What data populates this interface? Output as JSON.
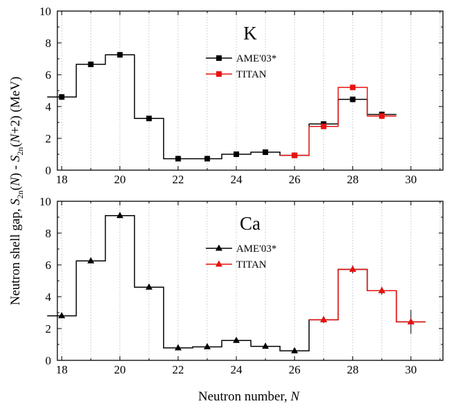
{
  "chart_data": [
    {
      "type": "line",
      "step": true,
      "label": "K",
      "xlim": [
        17.85,
        31.1
      ],
      "ylim": [
        0,
        10
      ],
      "xticks": [
        18,
        20,
        22,
        24,
        26,
        28,
        30
      ],
      "yticks": [
        0,
        2,
        4,
        6,
        8,
        10
      ],
      "grid": "vertical dotted at each integer N",
      "legend_position": "top-center",
      "series": [
        {
          "name": "AME'03*",
          "color": "#000000",
          "marker": "square",
          "x": [
            18,
            19,
            20,
            21,
            22,
            23,
            24,
            25,
            26,
            27,
            28,
            29
          ],
          "y": [
            4.6,
            6.65,
            7.25,
            3.25,
            0.72,
            0.72,
            1.0,
            1.13,
            0.93,
            2.9,
            4.45,
            3.5
          ],
          "err": [
            0.1,
            0.1,
            0.1,
            0.1,
            0.05,
            0.05,
            0.05,
            0.1,
            0.05,
            0.1,
            0.1,
            0.15
          ]
        },
        {
          "name": "TITAN",
          "color": "#e8110f",
          "marker": "square",
          "x": [
            26,
            27,
            28,
            29
          ],
          "y": [
            0.93,
            2.75,
            5.2,
            3.4
          ],
          "err": [
            0.05,
            0.05,
            0.05,
            0.05
          ]
        }
      ]
    },
    {
      "type": "line",
      "step": true,
      "label": "Ca",
      "xlim": [
        17.85,
        31.1
      ],
      "ylim": [
        0,
        10
      ],
      "xticks": [
        18,
        20,
        22,
        24,
        26,
        28,
        30
      ],
      "yticks": [
        0,
        2,
        4,
        6,
        8,
        10
      ],
      "grid": "vertical dotted at each integer N",
      "legend_position": "top-center",
      "series": [
        {
          "name": "AME'03*",
          "color": "#000000",
          "marker": "triangle",
          "x": [
            18,
            19,
            20,
            21,
            22,
            23,
            24,
            25,
            26,
            27,
            28,
            29,
            30
          ],
          "y": [
            2.8,
            6.25,
            9.1,
            4.6,
            0.78,
            0.85,
            1.25,
            0.88,
            0.6,
            2.55,
            5.72,
            4.38,
            2.42
          ],
          "err": [
            0.15,
            0.15,
            0.15,
            0.15,
            0.15,
            0.15,
            0.15,
            0.15,
            0.15,
            0.2,
            0.25,
            0.25,
            0.75
          ]
        },
        {
          "name": "TITAN",
          "color": "#e8110f",
          "marker": "triangle",
          "x": [
            27,
            28,
            29,
            30
          ],
          "y": [
            2.55,
            5.72,
            4.38,
            2.42
          ],
          "err": [
            0.1,
            0.1,
            0.1,
            0.1
          ]
        }
      ]
    }
  ],
  "y_axis_title": {
    "part1": "Neutron shell gap, ",
    "s": "S",
    "sub": "2n",
    "part2": "(",
    "n": "N",
    "part3": ") - ",
    "s2": "S",
    "sub2": "2n",
    "part4": "(",
    "n2": "N",
    "part5": "+2) (MeV)"
  },
  "x_axis_title": {
    "text": "Neutron number, ",
    "italic": "N"
  }
}
